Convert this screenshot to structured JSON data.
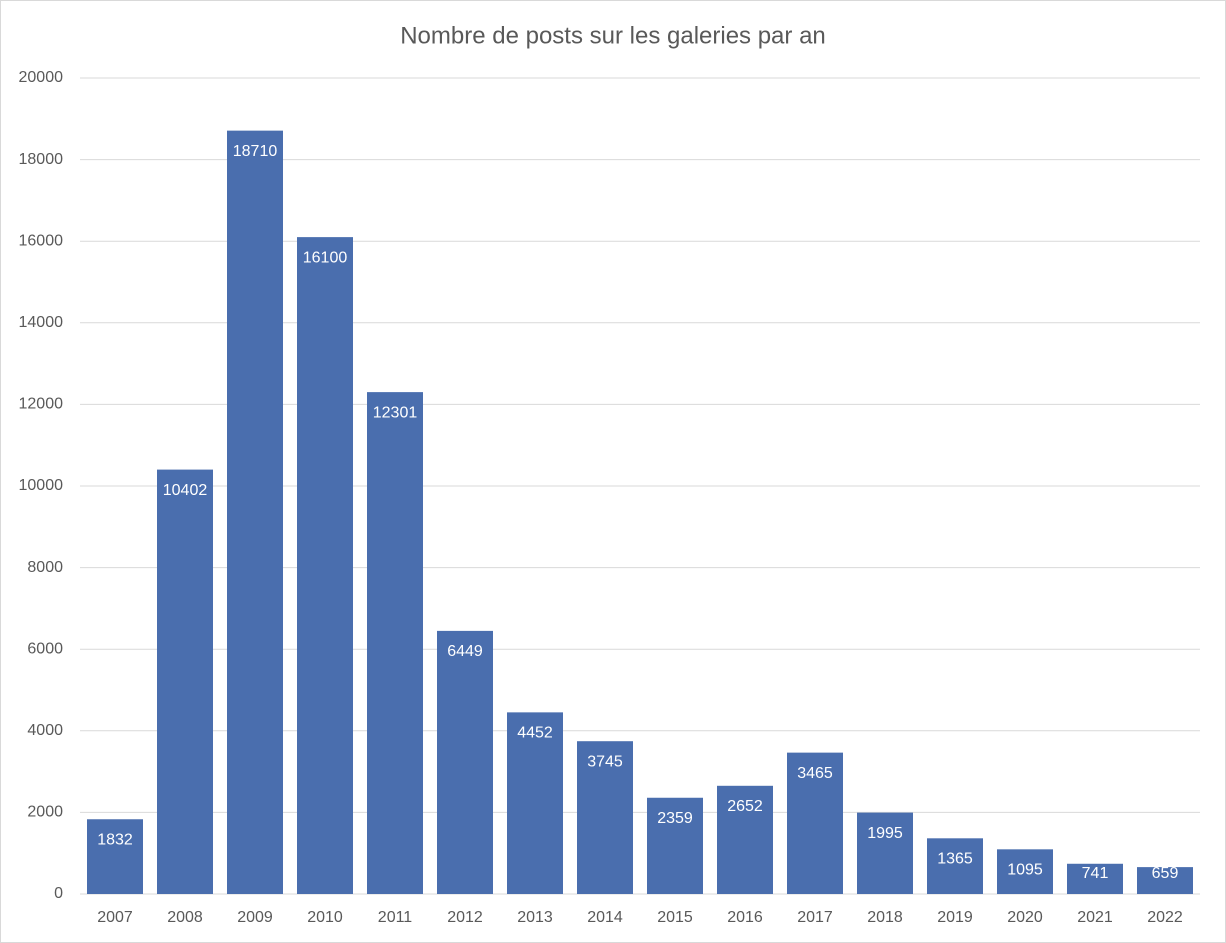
{
  "chart_data": {
    "type": "bar",
    "title": "Nombre de posts sur les galeries par an",
    "categories": [
      "2007",
      "2008",
      "2009",
      "2010",
      "2011",
      "2012",
      "2013",
      "2014",
      "2015",
      "2016",
      "2017",
      "2018",
      "2019",
      "2020",
      "2021",
      "2022"
    ],
    "values": [
      1832,
      10402,
      18710,
      16100,
      12301,
      6449,
      4452,
      3745,
      2359,
      2652,
      3465,
      1995,
      1365,
      1095,
      741,
      659
    ],
    "color": "#4a6eae",
    "ylim": [
      0,
      20000
    ],
    "yticks": [
      0,
      2000,
      4000,
      6000,
      8000,
      10000,
      12000,
      14000,
      16000,
      18000,
      20000
    ],
    "grid": true
  }
}
